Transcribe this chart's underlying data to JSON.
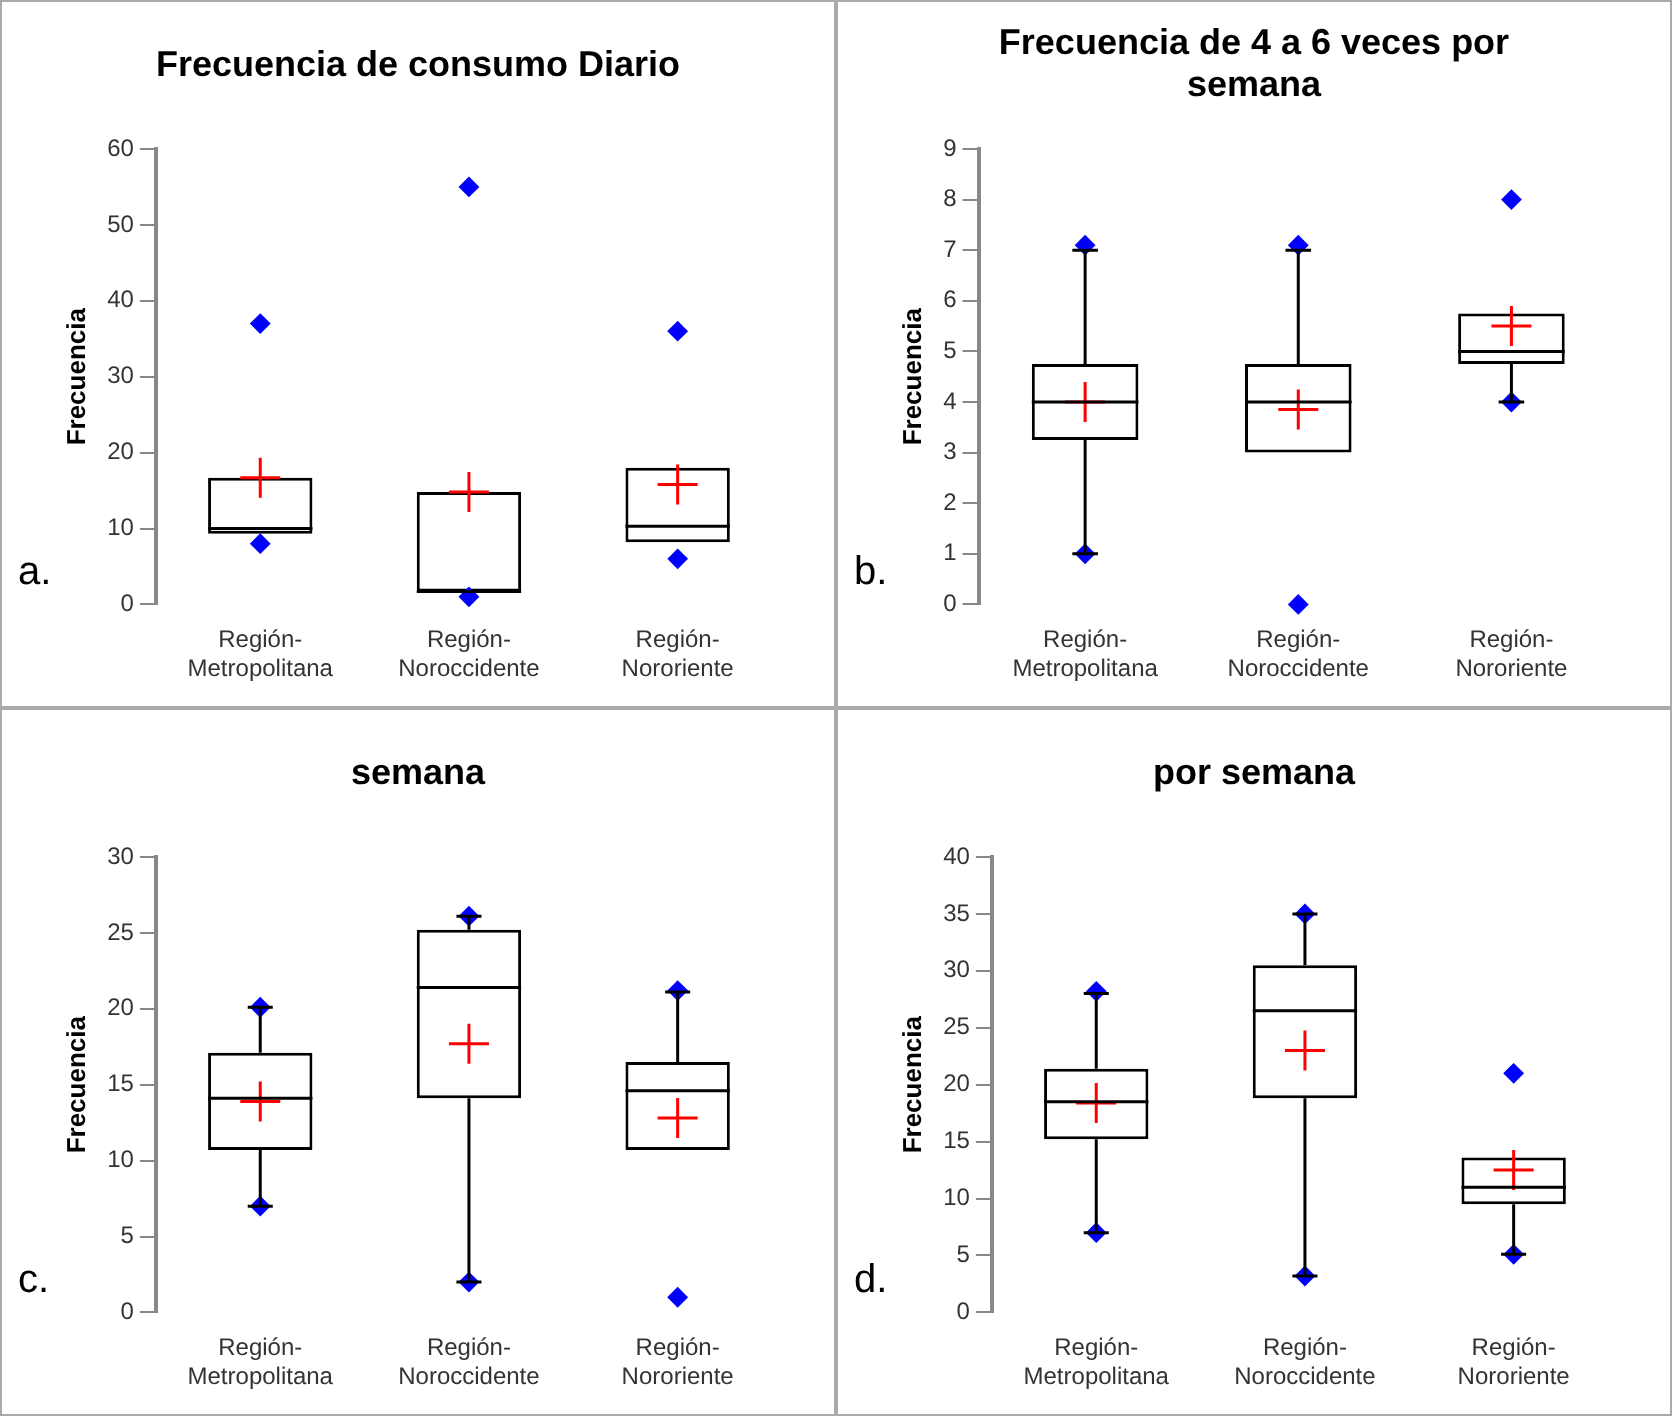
{
  "chart_data": [
    {
      "type": "box",
      "title": "Frecuencia de consumo Diario",
      "ylabel": "Frecuencia",
      "annotations": [
        "a."
      ],
      "categories": [
        "Región-Metropolitana",
        "Región-Noroccidente",
        "Región-Nororiente"
      ],
      "ylim": [
        0,
        60
      ],
      "yticks": [
        0,
        10,
        20,
        30,
        40,
        50,
        60
      ],
      "boxes": [
        {
          "low": 9.3,
          "q1": 9.3,
          "median": 10,
          "q3": 16.7,
          "high": 16.7,
          "mean": 16.7,
          "outliers": [
            8,
            37
          ]
        },
        {
          "low": 1.7,
          "q1": 1.7,
          "median": 1.7,
          "q3": 14.8,
          "high": 14.8,
          "mean": 14.8,
          "outliers": [
            1,
            55
          ]
        },
        {
          "low": 8.2,
          "q1": 8.2,
          "median": 10.3,
          "q3": 18,
          "high": 18,
          "mean": 15.8,
          "outliers": [
            6,
            36
          ]
        }
      ]
    },
    {
      "type": "box",
      "title": "Frecuencia de 4 a 6 veces por semana",
      "ylabel": "Frecuencia",
      "annotations": [
        "b."
      ],
      "categories": [
        "Región-Metropolitana",
        "Región-Noroccidente",
        "Región-Nororiente"
      ],
      "ylim": [
        0,
        9
      ],
      "yticks": [
        0,
        1,
        2,
        3,
        4,
        5,
        6,
        7,
        8,
        9
      ],
      "boxes": [
        {
          "low": 1,
          "q1": 3.25,
          "median": 4,
          "q3": 4.75,
          "high": 7,
          "mean": 4,
          "outliers": [
            1,
            7.1
          ]
        },
        {
          "low": 3,
          "q1": 3,
          "median": 4,
          "q3": 4.75,
          "high": 7,
          "mean": 3.85,
          "outliers": [
            0,
            7.1
          ]
        },
        {
          "low": 4,
          "q1": 4.75,
          "median": 5,
          "q3": 5.75,
          "high": 5.75,
          "mean": 5.5,
          "outliers": [
            4,
            8
          ]
        }
      ]
    },
    {
      "type": "box",
      "title": "semana",
      "ylabel": "Frecuencia",
      "annotations": [
        "c."
      ],
      "categories": [
        "Región-Metropolitana",
        "Región-Noroccidente",
        "Región-Nororiente"
      ],
      "ylim": [
        0,
        30
      ],
      "yticks": [
        0,
        5,
        10,
        15,
        20,
        25,
        30
      ],
      "boxes": [
        {
          "low": 7,
          "q1": 10.7,
          "median": 14.1,
          "q3": 17.1,
          "high": 20.1,
          "mean": 13.9,
          "outliers": [
            7,
            20.1
          ]
        },
        {
          "low": 2,
          "q1": 14.1,
          "median": 21.4,
          "q3": 25.2,
          "high": 26.1,
          "mean": 17.7,
          "outliers": [
            2,
            26.1
          ]
        },
        {
          "low": 10.7,
          "q1": 10.7,
          "median": 14.6,
          "q3": 16.5,
          "high": 21.1,
          "mean": 12.8,
          "outliers": [
            1,
            21.2
          ]
        }
      ]
    },
    {
      "type": "box",
      "title": "por semana",
      "ylabel": "Frecuencia",
      "annotations": [
        "d."
      ],
      "categories": [
        "Región-Metropolitana",
        "Región-Noroccidente",
        "Región-Nororiente"
      ],
      "ylim": [
        0,
        40
      ],
      "yticks": [
        0,
        5,
        10,
        15,
        20,
        25,
        30,
        35,
        40
      ],
      "boxes": [
        {
          "low": 7,
          "q1": 15.2,
          "median": 18.5,
          "q3": 21.4,
          "high": 28,
          "mean": 18.4,
          "outliers": [
            7,
            28.2
          ]
        },
        {
          "low": 3.2,
          "q1": 18.8,
          "median": 26.5,
          "q3": 30.5,
          "high": 35,
          "mean": 23,
          "outliers": [
            3.2,
            35
          ]
        },
        {
          "low": 5.1,
          "q1": 9.5,
          "median": 11,
          "q3": 13.6,
          "high": 13.6,
          "mean": 12.5,
          "outliers": [
            5.1,
            21
          ]
        }
      ]
    }
  ]
}
